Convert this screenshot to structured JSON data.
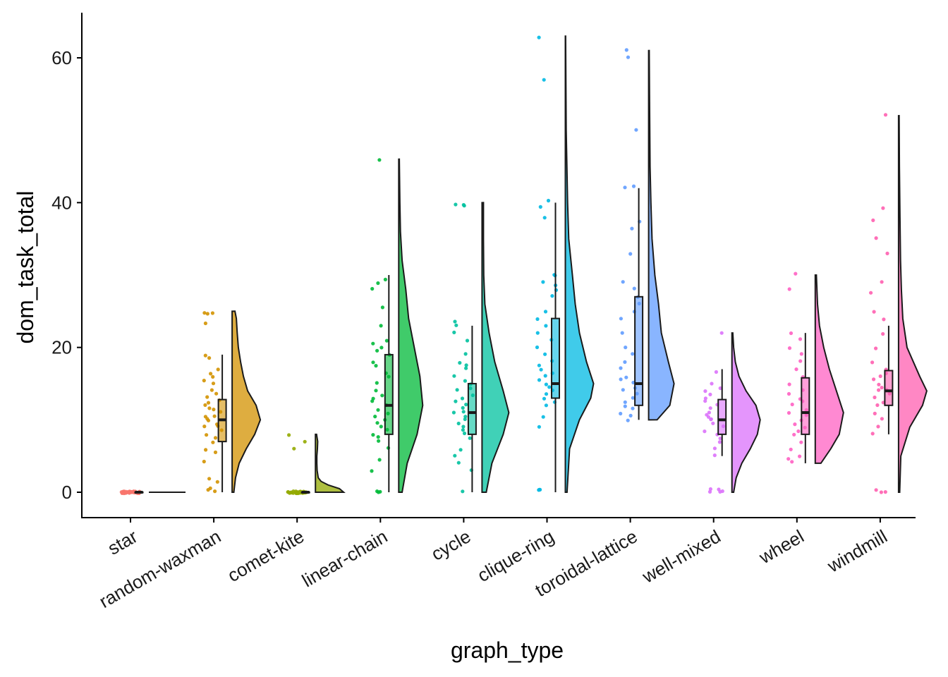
{
  "chart_data": {
    "type": "raincloud",
    "xlabel": "graph_type",
    "ylabel": "dom_task_total",
    "ylim": [
      -3.5,
      66
    ],
    "yticks": [
      0,
      20,
      40,
      60
    ],
    "categories": [
      "star",
      "random-waxman",
      "comet-kite",
      "linear-chain",
      "cycle",
      "clique-ring",
      "toroidal-lattice",
      "well-mixed",
      "wheel",
      "windmill"
    ],
    "groups": [
      {
        "name": "star",
        "color": "#F8766D",
        "box": {
          "min": 0,
          "q1": 0,
          "median": 0,
          "q3": 0,
          "max": 0
        },
        "range": [
          0,
          0
        ],
        "density": [
          [
            0,
            0.0
          ],
          [
            0,
            0.0
          ]
        ],
        "points": [
          0,
          0,
          0,
          0,
          0,
          0,
          0,
          0,
          0,
          0,
          0,
          0,
          0,
          0,
          0,
          0,
          0,
          0,
          0,
          0,
          0,
          0,
          0,
          0,
          0,
          0,
          0,
          0,
          0,
          0,
          0,
          0,
          0,
          0,
          0,
          0,
          0,
          0,
          0,
          0
        ]
      },
      {
        "name": "random-waxman",
        "color": "#D39200",
        "box": {
          "min": 0,
          "q1": 7,
          "median": 10,
          "q3": 12.8,
          "max": 19
        },
        "range": [
          0,
          25
        ],
        "density": [
          [
            0,
            0.06
          ],
          [
            2,
            0.12
          ],
          [
            4,
            0.25
          ],
          [
            6,
            0.5
          ],
          [
            8,
            0.8
          ],
          [
            10,
            1.0
          ],
          [
            12,
            0.85
          ],
          [
            14,
            0.55
          ],
          [
            16,
            0.4
          ],
          [
            18,
            0.3
          ],
          [
            20,
            0.22
          ],
          [
            22,
            0.18
          ],
          [
            24,
            0.15
          ],
          [
            25,
            0.1
          ]
        ],
        "points": [
          0,
          0.5,
          0.3,
          1.5,
          2,
          4.2,
          5.5,
          6,
          7,
          7.5,
          8,
          8.5,
          9,
          9.2,
          9.5,
          10,
          10,
          10.3,
          10.6,
          11,
          11.3,
          11.6,
          12,
          12.3,
          12.6,
          13,
          13.5,
          14,
          15,
          15.5,
          16,
          16.5,
          17,
          18.5,
          19,
          23.2,
          24.6,
          24.8,
          24.7
        ]
      },
      {
        "name": "comet-kite",
        "color": "#93AA00",
        "box": {
          "min": 0,
          "q1": 0,
          "median": 0,
          "q3": 0,
          "max": 0
        },
        "range": [
          0,
          8
        ],
        "density": [
          [
            0,
            1.0
          ],
          [
            0.5,
            0.85
          ],
          [
            1,
            0.45
          ],
          [
            1.5,
            0.2
          ],
          [
            2,
            0.1
          ],
          [
            3,
            0.06
          ],
          [
            4,
            0.05
          ],
          [
            5,
            0.05
          ],
          [
            6,
            0.07
          ],
          [
            7,
            0.08
          ],
          [
            8,
            0.04
          ]
        ],
        "points": [
          0,
          0,
          0,
          0,
          0,
          0,
          0,
          0,
          0,
          0,
          0,
          0,
          0,
          0,
          0,
          0,
          0,
          0,
          0,
          0,
          0,
          0,
          0,
          0,
          0,
          0,
          0,
          0,
          0,
          0,
          6,
          7,
          7.8
        ]
      },
      {
        "name": "linear-chain",
        "color": "#00BA38",
        "box": {
          "min": 0,
          "q1": 8,
          "median": 12,
          "q3": 19,
          "max": 30
        },
        "range": [
          0,
          46
        ],
        "density": [
          [
            0,
            0.12
          ],
          [
            4,
            0.3
          ],
          [
            8,
            0.65
          ],
          [
            12,
            0.85
          ],
          [
            16,
            0.75
          ],
          [
            20,
            0.55
          ],
          [
            24,
            0.35
          ],
          [
            28,
            0.25
          ],
          [
            32,
            0.12
          ],
          [
            36,
            0.06
          ],
          [
            40,
            0.04
          ],
          [
            46,
            0.02
          ]
        ],
        "points": [
          0,
          0,
          0,
          3,
          4.5,
          6,
          7,
          7.5,
          8,
          8.5,
          9,
          9.5,
          10,
          10.5,
          11,
          11.5,
          12,
          12.5,
          13,
          13.5,
          14,
          15,
          16,
          16.5,
          17.5,
          18,
          19,
          19.5,
          20,
          20.5,
          21,
          23,
          25.5,
          28,
          29,
          29.5,
          46
        ]
      },
      {
        "name": "cycle",
        "color": "#00C19F",
        "box": {
          "min": 0,
          "q1": 8,
          "median": 11,
          "q3": 15,
          "max": 23
        },
        "range": [
          0,
          40
        ],
        "density": [
          [
            0,
            0.15
          ],
          [
            4,
            0.35
          ],
          [
            8,
            0.75
          ],
          [
            11,
            0.95
          ],
          [
            14,
            0.75
          ],
          [
            18,
            0.45
          ],
          [
            22,
            0.25
          ],
          [
            26,
            0.1
          ],
          [
            30,
            0.06
          ],
          [
            35,
            0.05
          ],
          [
            40,
            0.05
          ]
        ],
        "points": [
          0,
          3,
          4,
          5,
          6,
          7.5,
          8,
          8.5,
          9,
          9.5,
          10,
          10.5,
          11,
          11,
          11.5,
          12,
          12.5,
          13,
          13.5,
          14,
          14.5,
          15,
          15.5,
          16,
          17,
          17.5,
          18,
          19,
          21,
          22,
          23,
          23.5,
          39.7,
          39.7,
          39.7
        ]
      },
      {
        "name": "clique-ring",
        "color": "#00B9E3",
        "box": {
          "min": 0,
          "q1": 13,
          "median": 15,
          "q3": 24,
          "max": 40
        },
        "range": [
          0,
          63
        ],
        "density": [
          [
            0,
            0.06
          ],
          [
            6,
            0.15
          ],
          [
            10,
            0.5
          ],
          [
            13,
            0.9
          ],
          [
            15,
            1.0
          ],
          [
            18,
            0.75
          ],
          [
            22,
            0.5
          ],
          [
            26,
            0.35
          ],
          [
            30,
            0.25
          ],
          [
            35,
            0.12
          ],
          [
            40,
            0.08
          ],
          [
            50,
            0.03
          ],
          [
            63,
            0.01
          ]
        ],
        "points": [
          0.2,
          0.3,
          0.3,
          9,
          10.5,
          12,
          12.5,
          13,
          13.5,
          14,
          14.5,
          15,
          15.5,
          16,
          16.5,
          17,
          17.5,
          18,
          19,
          20,
          21,
          22,
          23,
          24,
          25,
          27,
          28,
          28.5,
          29,
          30,
          30,
          38,
          39.5,
          40.3,
          57,
          62.8
        ]
      },
      {
        "name": "toroidal-lattice",
        "color": "#619CFF",
        "box": {
          "min": 10,
          "q1": 12,
          "median": 15,
          "q3": 27,
          "max": 42
        },
        "range": [
          10,
          61
        ],
        "density": [
          [
            10,
            0.3
          ],
          [
            12,
            0.75
          ],
          [
            15,
            0.9
          ],
          [
            18,
            0.7
          ],
          [
            22,
            0.45
          ],
          [
            26,
            0.35
          ],
          [
            30,
            0.22
          ],
          [
            35,
            0.12
          ],
          [
            40,
            0.08
          ],
          [
            45,
            0.05
          ],
          [
            50,
            0.04
          ],
          [
            55,
            0.03
          ],
          [
            61,
            0.02
          ]
        ],
        "points": [
          9.8,
          10.5,
          11,
          11.5,
          12,
          12.5,
          13,
          13.5,
          14,
          14.5,
          15,
          15.5,
          16,
          17,
          18,
          19,
          20,
          22,
          24,
          25,
          26,
          27,
          28,
          29,
          33,
          36.5,
          37.5,
          42,
          42.2,
          50,
          60,
          61.2
        ]
      },
      {
        "name": "well-mixed",
        "color": "#DB72FB",
        "box": {
          "min": 5,
          "q1": 8,
          "median": 10,
          "q3": 12.8,
          "max": 17
        },
        "range": [
          0,
          22
        ],
        "density": [
          [
            0,
            0.06
          ],
          [
            2,
            0.15
          ],
          [
            4,
            0.35
          ],
          [
            6,
            0.65
          ],
          [
            8,
            0.9
          ],
          [
            10,
            1.0
          ],
          [
            12,
            0.85
          ],
          [
            14,
            0.5
          ],
          [
            16,
            0.25
          ],
          [
            18,
            0.12
          ],
          [
            20,
            0.06
          ],
          [
            22,
            0.03
          ]
        ],
        "points": [
          0,
          0,
          0.2,
          0.3,
          0.5,
          5.2,
          6,
          7,
          7.5,
          8,
          8.5,
          9,
          9.5,
          10,
          10,
          10.3,
          10.6,
          11,
          11.5,
          12,
          12.5,
          13,
          13.5,
          14,
          14.5,
          15,
          16.5,
          22
        ]
      },
      {
        "name": "wheel",
        "color": "#FF61C3",
        "box": {
          "min": 4,
          "q1": 8,
          "median": 11,
          "q3": 15.8,
          "max": 22
        },
        "range": [
          4,
          30
        ],
        "density": [
          [
            4,
            0.2
          ],
          [
            6,
            0.55
          ],
          [
            8,
            0.85
          ],
          [
            11,
            1.0
          ],
          [
            14,
            0.75
          ],
          [
            17,
            0.5
          ],
          [
            20,
            0.3
          ],
          [
            23,
            0.15
          ],
          [
            26,
            0.08
          ],
          [
            30,
            0.04
          ]
        ],
        "points": [
          4.2,
          4.5,
          5,
          6,
          7,
          8,
          8.5,
          9,
          9.5,
          10,
          10.5,
          11,
          11.5,
          12,
          12.5,
          13,
          13.5,
          14,
          15,
          16,
          17,
          18,
          19,
          20,
          21,
          22,
          28,
          30.3
        ]
      },
      {
        "name": "windmill",
        "color": "#FF5FB0",
        "box": {
          "min": 8,
          "q1": 12,
          "median": 14,
          "q3": 16.8,
          "max": 23
        },
        "range": [
          0,
          52
        ],
        "density": [
          [
            0,
            0.04
          ],
          [
            5,
            0.08
          ],
          [
            9,
            0.4
          ],
          [
            12,
            0.85
          ],
          [
            14,
            1.0
          ],
          [
            16,
            0.75
          ],
          [
            20,
            0.3
          ],
          [
            24,
            0.15
          ],
          [
            28,
            0.1
          ],
          [
            32,
            0.07
          ],
          [
            38,
            0.05
          ],
          [
            45,
            0.03
          ],
          [
            52,
            0.02
          ]
        ],
        "points": [
          0,
          0,
          0.2,
          8,
          9,
          10,
          11,
          12,
          12.5,
          13,
          13.5,
          14,
          14,
          14.5,
          15,
          15.5,
          16,
          16.5,
          17,
          18,
          20,
          22,
          24,
          25,
          27.5,
          29,
          33,
          35,
          37.5,
          39.3,
          52.2
        ]
      }
    ]
  }
}
